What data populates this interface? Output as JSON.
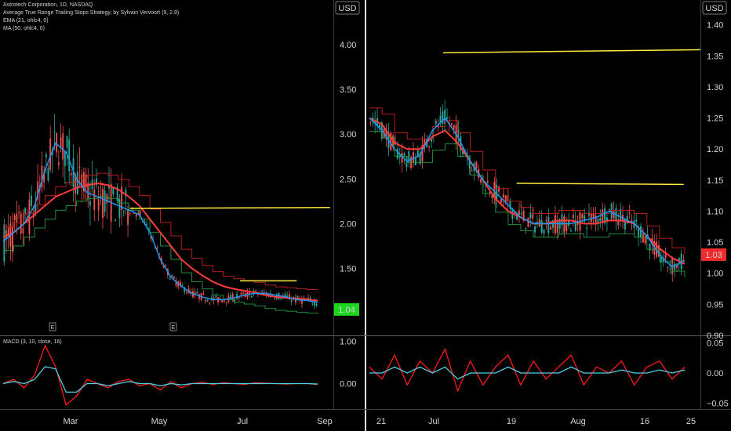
{
  "header": {
    "title": "Astrotech Corporation, 1D, NASDAQ",
    "indicators": [
      "Average True Range Trailing Stops Strategy, by Sylvain Vervoort (9, 2.9)",
      "EMA (21, ohlc4, 0)",
      "MA (50, ohlc4, 0)"
    ],
    "macd_label": "MACD (3, 10, close, 16)"
  },
  "currency": "USD",
  "colors": {
    "background": "#000000",
    "candle_up": "#26a69a",
    "candle_down": "#ef5350",
    "ema": "#2196f3",
    "ma": "#ff3b3b",
    "stop_up": "#1f8f3a",
    "stop_down": "#b71c1c",
    "annotation": "#ffeb3b",
    "macd": "#ff1a1a",
    "signal": "#4dd0e1",
    "last_price_left": "#1fd61f",
    "last_price_right": "#ef2b2b"
  },
  "chart_data": [
    {
      "type": "line",
      "panel": "left-price",
      "title": "Astrotech Corporation, 1D, NASDAQ",
      "ylim": [
        0.75,
        4.5
      ],
      "y_ticks": [
        "4.00",
        "3.50",
        "3.00",
        "2.50",
        "2.00",
        "1.50"
      ],
      "x_ticks": [
        "Mar",
        "May",
        "Jul",
        "Sep"
      ],
      "last_price": "1.04",
      "earnings_markers": [
        "E",
        "E"
      ],
      "series": [
        {
          "name": "EMA (21, ohlc4, 0)",
          "values": [
            1.8,
            1.9,
            2.0,
            2.2,
            2.6,
            2.9,
            2.8,
            2.5,
            2.35,
            2.3,
            2.25,
            2.2,
            2.15,
            2.1,
            1.9,
            1.6,
            1.4,
            1.3,
            1.22,
            1.18,
            1.15,
            1.15,
            1.17,
            1.2,
            1.22,
            1.22,
            1.2,
            1.18,
            1.15,
            1.14,
            1.12
          ]
        },
        {
          "name": "MA (50, ohlc4, 0)",
          "values": [
            1.85,
            1.9,
            2.0,
            2.1,
            2.2,
            2.3,
            2.35,
            2.4,
            2.43,
            2.45,
            2.43,
            2.38,
            2.3,
            2.2,
            2.05,
            1.9,
            1.75,
            1.6,
            1.5,
            1.42,
            1.35,
            1.3,
            1.27,
            1.25,
            1.23,
            1.2,
            1.18,
            1.17,
            1.16,
            1.15,
            1.14
          ]
        }
      ],
      "annotations": [
        {
          "label": "resistance-line-1",
          "y_start": 2.17,
          "y_end": 2.18
        },
        {
          "label": "resistance-line-2",
          "y_start": 1.36,
          "y_end": 1.36
        }
      ]
    },
    {
      "type": "line",
      "panel": "right-price",
      "ylim": [
        0.9,
        1.44
      ],
      "y_ticks": [
        "1.40",
        "1.35",
        "1.30",
        "1.25",
        "1.20",
        "1.15",
        "1.10",
        "1.05",
        "1.00",
        "0.95",
        "0.90"
      ],
      "x_ticks": [
        "21",
        "Jul",
        "19",
        "Aug",
        "16",
        "25"
      ],
      "last_price": "1.03",
      "series": [
        {
          "name": "EMA (21, ohlc4, 0)",
          "values": [
            1.25,
            1.23,
            1.2,
            1.18,
            1.19,
            1.23,
            1.25,
            1.22,
            1.18,
            1.15,
            1.13,
            1.11,
            1.09,
            1.08,
            1.08,
            1.08,
            1.08,
            1.085,
            1.09,
            1.1,
            1.09,
            1.08,
            1.06,
            1.03,
            1.01,
            1.02
          ]
        },
        {
          "name": "MA (50, ohlc4, 0)",
          "values": [
            1.25,
            1.24,
            1.21,
            1.2,
            1.2,
            1.22,
            1.23,
            1.21,
            1.18,
            1.15,
            1.12,
            1.1,
            1.09,
            1.08,
            1.08,
            1.085,
            1.085,
            1.08,
            1.08,
            1.085,
            1.085,
            1.08,
            1.06,
            1.04,
            1.025,
            1.015
          ]
        }
      ],
      "annotations": [
        {
          "label": "resistance-line-1",
          "y_start": 1.355,
          "y_end": 1.36
        },
        {
          "label": "resistance-line-2",
          "y_start": 1.145,
          "y_end": 1.143
        }
      ]
    },
    {
      "type": "line",
      "panel": "left-macd",
      "title": "MACD (3, 10, close, 16)",
      "ylim": [
        -0.6,
        1.1
      ],
      "y_ticks": [
        "1.00",
        "0.00"
      ],
      "series": [
        {
          "name": "MACD",
          "values": [
            0.0,
            0.1,
            -0.1,
            0.2,
            0.9,
            0.4,
            -0.5,
            -0.3,
            0.1,
            0.0,
            -0.1,
            0.05,
            0.1,
            -0.05,
            0.0,
            -0.15,
            0.05,
            -0.1,
            0.0,
            0.03,
            -0.02,
            0.02,
            0.0,
            -0.02,
            0.02,
            0.01,
            0.0,
            -0.01,
            0.0,
            0.0,
            -0.02
          ]
        },
        {
          "name": "Signal",
          "values": [
            0.0,
            0.05,
            0.0,
            0.1,
            0.4,
            0.35,
            -0.2,
            -0.2,
            0.0,
            0.0,
            -0.05,
            0.0,
            0.05,
            0.0,
            0.0,
            -0.05,
            0.0,
            -0.03,
            0.0,
            0.0,
            0.0,
            0.0,
            0.0,
            0.0,
            0.0,
            0.0,
            0.0,
            0.0,
            0.0,
            0.0,
            -0.01
          ]
        }
      ]
    },
    {
      "type": "line",
      "panel": "right-macd",
      "ylim": [
        -0.06,
        0.06
      ],
      "y_ticks": [
        "0.05",
        "0.00",
        "−0.05"
      ],
      "series": [
        {
          "name": "MACD",
          "values": [
            0.01,
            -0.01,
            0.03,
            -0.02,
            0.02,
            0.0,
            0.04,
            -0.03,
            0.02,
            -0.02,
            0.01,
            0.03,
            -0.02,
            0.02,
            -0.01,
            0.01,
            0.03,
            -0.02,
            0.01,
            0.0,
            0.02,
            -0.02,
            0.01,
            0.02,
            -0.01,
            0.01
          ]
        },
        {
          "name": "Signal",
          "values": [
            0.0,
            0.0,
            0.01,
            0.0,
            0.01,
            0.0,
            0.01,
            -0.01,
            0.0,
            0.0,
            0.0,
            0.01,
            0.0,
            0.0,
            0.0,
            0.0,
            0.01,
            0.0,
            0.0,
            0.0,
            0.005,
            0.0,
            0.0,
            0.005,
            0.0,
            0.005
          ]
        }
      ]
    }
  ]
}
